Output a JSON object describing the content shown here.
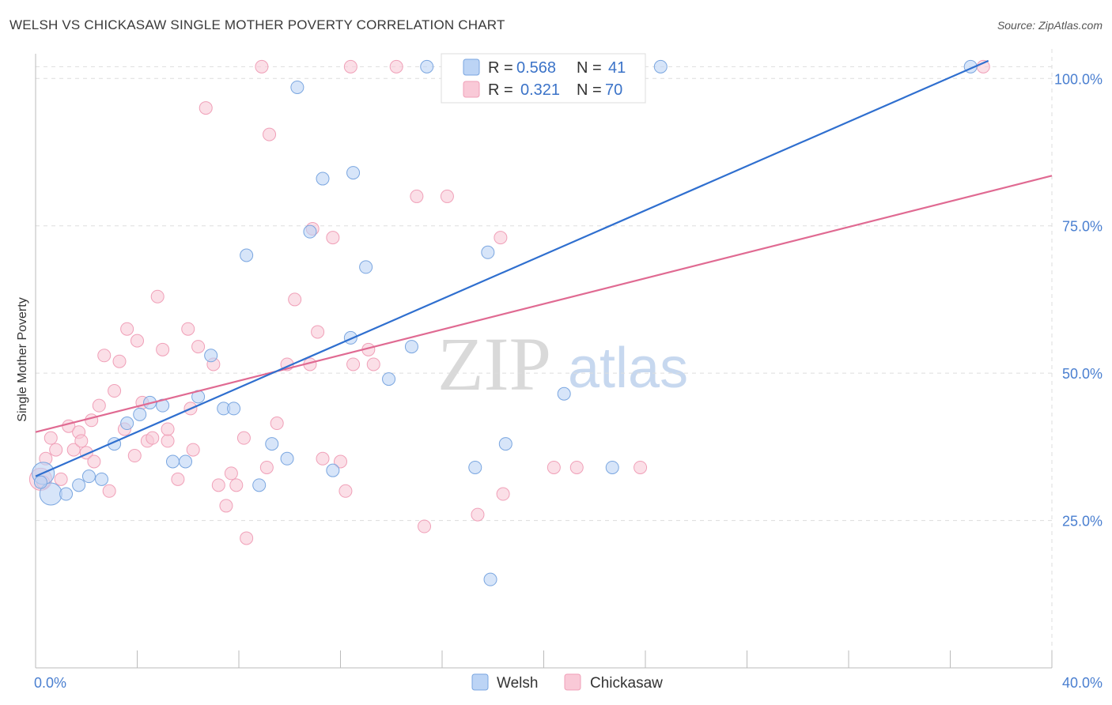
{
  "title": "WELSH VS CHICKASAW SINGLE MOTHER POVERTY CORRELATION CHART",
  "source": "Source: ZipAtlas.com",
  "watermark": {
    "zip": "ZIP",
    "atlas": "atlas"
  },
  "legend": {
    "r_label": "R =",
    "n_label": "N =",
    "rows": [
      {
        "r": "0.568",
        "n": "41"
      },
      {
        "r": "0.321",
        "n": "70"
      }
    ]
  },
  "colors": {
    "welsh_fill": "#bcd4f5",
    "welsh_stroke": "#7aa6e0",
    "welsh_line": "#2f6fcf",
    "chickasaw_fill": "#f9c9d7",
    "chickasaw_stroke": "#f0a0b8",
    "chickasaw_line": "#e06a92",
    "grid": "#dddddd",
    "axis_label": "#4a7fd0"
  },
  "chart_data": {
    "type": "scatter",
    "title": "WELSH VS CHICKASAW SINGLE MOTHER POVERTY CORRELATION CHART",
    "xlabel": "",
    "ylabel": "Single Mother Poverty",
    "xlim": [
      0,
      40
    ],
    "ylim": [
      0,
      105
    ],
    "x_tick_labels": [
      "0.0%",
      "40.0%"
    ],
    "y_ticks": [
      25,
      50,
      75,
      100
    ],
    "y_tick_labels": [
      "25.0%",
      "50.0%",
      "75.0%",
      "100.0%"
    ],
    "grid": true,
    "legend_position": "top-center",
    "series": [
      {
        "name": "Welsh",
        "r": 0.568,
        "n": 41,
        "trend": {
          "x": [
            0,
            37.5
          ],
          "y": [
            32.5,
            103
          ]
        },
        "points": [
          {
            "x": 0.3,
            "y": 33.0,
            "big": true
          },
          {
            "x": 0.6,
            "y": 29.5,
            "big": true
          },
          {
            "x": 1.2,
            "y": 29.5
          },
          {
            "x": 1.7,
            "y": 31.0
          },
          {
            "x": 2.1,
            "y": 32.5
          },
          {
            "x": 2.6,
            "y": 32.0
          },
          {
            "x": 3.1,
            "y": 38.0
          },
          {
            "x": 3.6,
            "y": 41.5
          },
          {
            "x": 4.1,
            "y": 43.0
          },
          {
            "x": 4.5,
            "y": 45.0
          },
          {
            "x": 5.0,
            "y": 44.5
          },
          {
            "x": 5.4,
            "y": 35.0
          },
          {
            "x": 5.9,
            "y": 35.0
          },
          {
            "x": 6.4,
            "y": 46.0
          },
          {
            "x": 6.9,
            "y": 53.0
          },
          {
            "x": 7.4,
            "y": 44.0
          },
          {
            "x": 7.8,
            "y": 44.0
          },
          {
            "x": 8.3,
            "y": 70.0
          },
          {
            "x": 8.8,
            "y": 31.0
          },
          {
            "x": 9.3,
            "y": 38.0
          },
          {
            "x": 9.9,
            "y": 35.5
          },
          {
            "x": 10.3,
            "y": 98.5
          },
          {
            "x": 10.8,
            "y": 74.0
          },
          {
            "x": 11.3,
            "y": 83.0
          },
          {
            "x": 11.7,
            "y": 33.5
          },
          {
            "x": 12.4,
            "y": 56.0
          },
          {
            "x": 12.5,
            "y": 84.0
          },
          {
            "x": 13.0,
            "y": 68.0
          },
          {
            "x": 13.9,
            "y": 49.0
          },
          {
            "x": 14.8,
            "y": 54.5
          },
          {
            "x": 15.4,
            "y": 102.0
          },
          {
            "x": 17.3,
            "y": 34.0
          },
          {
            "x": 17.8,
            "y": 70.5
          },
          {
            "x": 17.9,
            "y": 15.0
          },
          {
            "x": 18.5,
            "y": 38.0
          },
          {
            "x": 20.1,
            "y": 102.0
          },
          {
            "x": 20.8,
            "y": 46.5
          },
          {
            "x": 22.7,
            "y": 34.0
          },
          {
            "x": 24.6,
            "y": 102.0
          },
          {
            "x": 36.8,
            "y": 102.0
          },
          {
            "x": 0.2,
            "y": 31.5
          }
        ]
      },
      {
        "name": "Chickasaw",
        "r": 0.321,
        "n": 70,
        "trend": {
          "x": [
            0,
            40
          ],
          "y": [
            40.0,
            83.5
          ]
        },
        "points": [
          {
            "x": 0.2,
            "y": 32.0,
            "big": true
          },
          {
            "x": 0.4,
            "y": 35.5
          },
          {
            "x": 0.6,
            "y": 39.0
          },
          {
            "x": 0.8,
            "y": 37.0
          },
          {
            "x": 1.0,
            "y": 32.0
          },
          {
            "x": 1.3,
            "y": 41.0
          },
          {
            "x": 1.5,
            "y": 37.0
          },
          {
            "x": 1.7,
            "y": 40.0
          },
          {
            "x": 1.8,
            "y": 38.5
          },
          {
            "x": 2.0,
            "y": 36.5
          },
          {
            "x": 2.2,
            "y": 42.0
          },
          {
            "x": 2.3,
            "y": 35.0
          },
          {
            "x": 2.5,
            "y": 44.5
          },
          {
            "x": 2.7,
            "y": 53.0
          },
          {
            "x": 2.9,
            "y": 30.0
          },
          {
            "x": 3.1,
            "y": 47.0
          },
          {
            "x": 3.3,
            "y": 52.0
          },
          {
            "x": 3.5,
            "y": 40.5
          },
          {
            "x": 3.6,
            "y": 57.5
          },
          {
            "x": 3.9,
            "y": 36.0
          },
          {
            "x": 4.0,
            "y": 55.5
          },
          {
            "x": 4.2,
            "y": 45.0
          },
          {
            "x": 4.4,
            "y": 38.5
          },
          {
            "x": 4.6,
            "y": 39.0
          },
          {
            "x": 4.8,
            "y": 63.0
          },
          {
            "x": 5.0,
            "y": 54.0
          },
          {
            "x": 5.2,
            "y": 38.5
          },
          {
            "x": 5.2,
            "y": 40.5
          },
          {
            "x": 5.6,
            "y": 32.0
          },
          {
            "x": 6.0,
            "y": 57.5
          },
          {
            "x": 6.1,
            "y": 44.0
          },
          {
            "x": 6.2,
            "y": 37.0
          },
          {
            "x": 6.4,
            "y": 54.5
          },
          {
            "x": 6.7,
            "y": 95.0
          },
          {
            "x": 7.0,
            "y": 51.5
          },
          {
            "x": 7.2,
            "y": 31.0
          },
          {
            "x": 7.5,
            "y": 27.5
          },
          {
            "x": 7.7,
            "y": 33.0
          },
          {
            "x": 7.9,
            "y": 31.0
          },
          {
            "x": 8.2,
            "y": 39.0
          },
          {
            "x": 8.3,
            "y": 22.0
          },
          {
            "x": 8.9,
            "y": 102.0
          },
          {
            "x": 9.1,
            "y": 34.0
          },
          {
            "x": 9.2,
            "y": 90.5
          },
          {
            "x": 9.5,
            "y": 41.5
          },
          {
            "x": 9.9,
            "y": 51.5
          },
          {
            "x": 10.2,
            "y": 62.5
          },
          {
            "x": 10.8,
            "y": 51.5
          },
          {
            "x": 10.9,
            "y": 74.5
          },
          {
            "x": 11.1,
            "y": 57.0
          },
          {
            "x": 11.3,
            "y": 35.5
          },
          {
            "x": 11.7,
            "y": 73.0
          },
          {
            "x": 12.0,
            "y": 35.0
          },
          {
            "x": 12.2,
            "y": 30.0
          },
          {
            "x": 12.4,
            "y": 102.0
          },
          {
            "x": 12.5,
            "y": 51.5
          },
          {
            "x": 13.1,
            "y": 54.0
          },
          {
            "x": 13.3,
            "y": 51.5
          },
          {
            "x": 14.2,
            "y": 102.0
          },
          {
            "x": 15.0,
            "y": 80.0
          },
          {
            "x": 15.3,
            "y": 24.0
          },
          {
            "x": 16.2,
            "y": 80.0
          },
          {
            "x": 17.4,
            "y": 26.0
          },
          {
            "x": 18.3,
            "y": 73.0
          },
          {
            "x": 18.4,
            "y": 29.5
          },
          {
            "x": 20.4,
            "y": 34.0
          },
          {
            "x": 21.3,
            "y": 34.0
          },
          {
            "x": 23.8,
            "y": 34.0
          },
          {
            "x": 37.3,
            "y": 102.0
          },
          {
            "x": 0.3,
            "y": 31.5
          }
        ]
      }
    ]
  }
}
